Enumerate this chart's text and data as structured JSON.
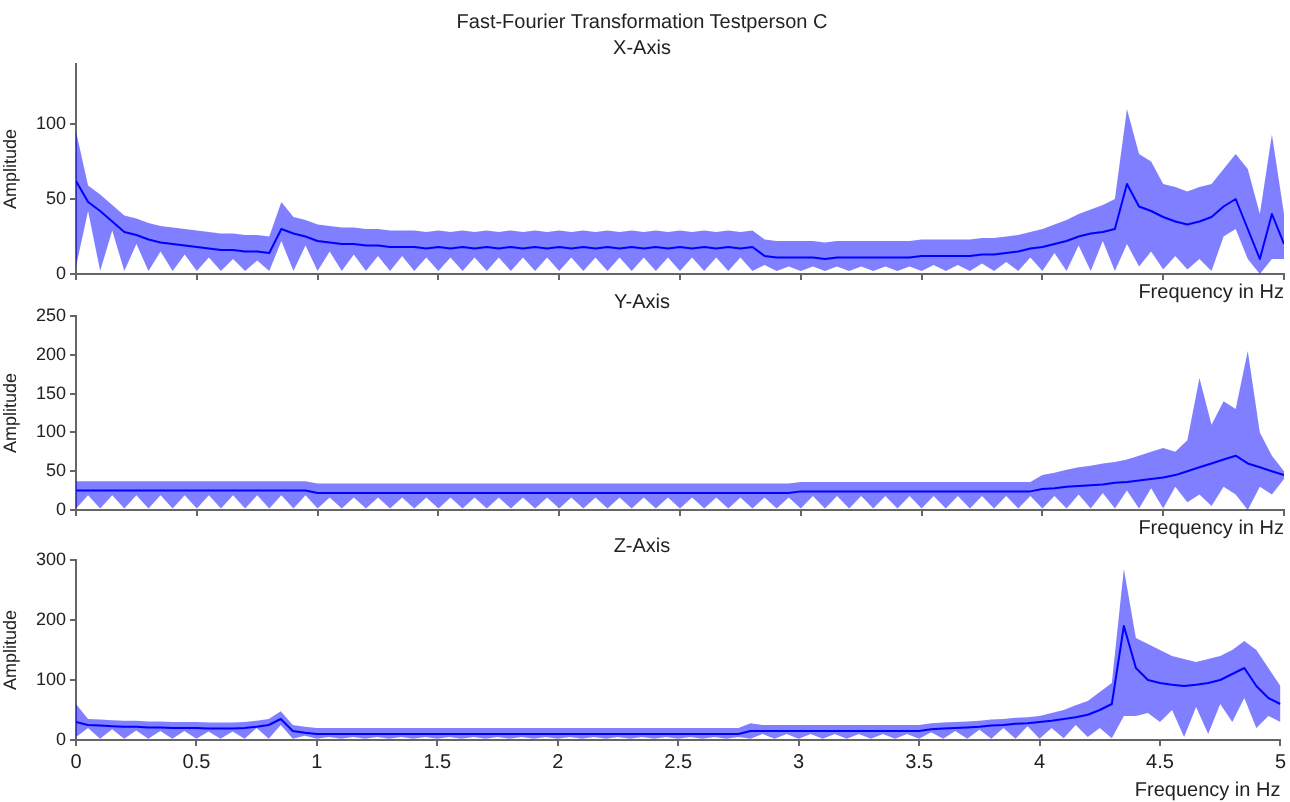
{
  "chart_data": [
    {
      "type": "line",
      "title": "Fast-Fourier Transformation Testperson C",
      "subtitle": "X-Axis",
      "xlabel": "Frequency in Hz",
      "ylabel": "Amplitude",
      "xlim": [
        0,
        5
      ],
      "xticks": [
        0,
        0.5,
        1,
        1.5,
        2,
        2.5,
        3,
        3.5,
        4,
        4.5,
        5
      ],
      "ylim": [
        0,
        140
      ],
      "yticks": [
        0,
        50,
        100
      ],
      "tick_labels": "y",
      "grid": false,
      "legend": false,
      "x": [
        0,
        0.05,
        0.1,
        0.15,
        0.2,
        0.25,
        0.3,
        0.35,
        0.4,
        0.45,
        0.5,
        0.55,
        0.6,
        0.65,
        0.7,
        0.75,
        0.8,
        0.85,
        0.9,
        0.95,
        1,
        1.05,
        1.1,
        1.15,
        1.2,
        1.25,
        1.3,
        1.35,
        1.4,
        1.45,
        1.5,
        1.55,
        1.6,
        1.65,
        1.7,
        1.75,
        1.8,
        1.85,
        1.9,
        1.95,
        2,
        2.05,
        2.1,
        2.15,
        2.2,
        2.25,
        2.3,
        2.35,
        2.4,
        2.45,
        2.5,
        2.55,
        2.6,
        2.65,
        2.7,
        2.75,
        2.8,
        2.85,
        2.9,
        2.95,
        3,
        3.05,
        3.1,
        3.15,
        3.2,
        3.25,
        3.3,
        3.35,
        3.4,
        3.45,
        3.5,
        3.55,
        3.6,
        3.65,
        3.7,
        3.75,
        3.8,
        3.85,
        3.9,
        3.95,
        4,
        4.05,
        4.1,
        4.15,
        4.2,
        4.25,
        4.3,
        4.35,
        4.4,
        4.45,
        4.5,
        4.55,
        4.6,
        4.65,
        4.7,
        4.75,
        4.8,
        4.85,
        4.9,
        4.95,
        5
      ],
      "series": [
        {
          "color": "#0000ff",
          "values": [
            62,
            48,
            42,
            35,
            28,
            26,
            23,
            21,
            20,
            19,
            18,
            17,
            16,
            16,
            15,
            15,
            14,
            30,
            27,
            25,
            22,
            21,
            20,
            20,
            19,
            19,
            18,
            18,
            18,
            17,
            18,
            17,
            18,
            17,
            18,
            17,
            18,
            17,
            18,
            17,
            18,
            17,
            18,
            17,
            18,
            17,
            18,
            17,
            18,
            17,
            18,
            17,
            18,
            17,
            18,
            17,
            18,
            12,
            11,
            11,
            11,
            11,
            10,
            11,
            11,
            11,
            11,
            11,
            11,
            11,
            12,
            12,
            12,
            12,
            12,
            13,
            13,
            14,
            15,
            17,
            18,
            20,
            22,
            25,
            27,
            28,
            30,
            60,
            45,
            42,
            38,
            35,
            33,
            35,
            38,
            45,
            50,
            30,
            10,
            40,
            20
          ],
          "upper": [
            95,
            59,
            53,
            46,
            39,
            37,
            34,
            32,
            31,
            30,
            29,
            28,
            27,
            27,
            26,
            26,
            25,
            48,
            38,
            36,
            33,
            32,
            31,
            31,
            30,
            30,
            29,
            29,
            29,
            28,
            29,
            28,
            29,
            28,
            29,
            28,
            29,
            28,
            29,
            28,
            29,
            28,
            29,
            28,
            29,
            28,
            29,
            28,
            29,
            28,
            29,
            28,
            29,
            28,
            29,
            28,
            29,
            23,
            22,
            22,
            22,
            22,
            21,
            22,
            22,
            22,
            22,
            22,
            22,
            22,
            23,
            23,
            23,
            23,
            23,
            24,
            24,
            25,
            26,
            28,
            30,
            33,
            36,
            40,
            43,
            46,
            50,
            110,
            80,
            75,
            60,
            58,
            55,
            58,
            60,
            70,
            80,
            70,
            40,
            93,
            40
          ],
          "lower": [
            5,
            42,
            2,
            29,
            2,
            20,
            2,
            15,
            2,
            13,
            2,
            11,
            2,
            10,
            2,
            9,
            2,
            22,
            2,
            19,
            2,
            15,
            2,
            13,
            2,
            12,
            2,
            12,
            2,
            11,
            2,
            11,
            2,
            11,
            2,
            11,
            2,
            11,
            2,
            11,
            2,
            11,
            2,
            11,
            2,
            11,
            2,
            11,
            2,
            11,
            2,
            11,
            2,
            11,
            2,
            11,
            2,
            6,
            2,
            5,
            2,
            5,
            2,
            5,
            2,
            5,
            2,
            5,
            2,
            5,
            2,
            6,
            2,
            6,
            2,
            7,
            2,
            8,
            2,
            11,
            2,
            14,
            2,
            19,
            2,
            22,
            2,
            20,
            5,
            15,
            3,
            12,
            3,
            10,
            2,
            25,
            30,
            10,
            0,
            10,
            10
          ]
        }
      ]
    },
    {
      "type": "line",
      "title": "Y-Axis",
      "xlabel": "Frequency in Hz",
      "ylabel": "Amplitude",
      "xlim": [
        0,
        5
      ],
      "xticks": [
        0,
        0.5,
        1,
        1.5,
        2,
        2.5,
        3,
        3.5,
        4,
        4.5,
        5
      ],
      "ylim": [
        0,
        250
      ],
      "yticks": [
        0,
        50,
        100,
        150,
        200,
        250
      ],
      "tick_labels": "y",
      "grid": false,
      "legend": false,
      "x": [
        0,
        0.05,
        0.1,
        0.15,
        0.2,
        0.25,
        0.3,
        0.35,
        0.4,
        0.45,
        0.5,
        0.55,
        0.6,
        0.65,
        0.7,
        0.75,
        0.8,
        0.85,
        0.9,
        0.95,
        1,
        1.05,
        1.1,
        1.15,
        1.2,
        1.25,
        1.3,
        1.35,
        1.4,
        1.45,
        1.5,
        1.55,
        1.6,
        1.65,
        1.7,
        1.75,
        1.8,
        1.85,
        1.9,
        1.95,
        2,
        2.05,
        2.1,
        2.15,
        2.2,
        2.25,
        2.3,
        2.35,
        2.4,
        2.45,
        2.5,
        2.55,
        2.6,
        2.65,
        2.7,
        2.75,
        2.8,
        2.85,
        2.9,
        2.95,
        3,
        3.05,
        3.1,
        3.15,
        3.2,
        3.25,
        3.3,
        3.35,
        3.4,
        3.45,
        3.5,
        3.55,
        3.6,
        3.65,
        3.7,
        3.75,
        3.8,
        3.85,
        3.9,
        3.95,
        4,
        4.05,
        4.1,
        4.15,
        4.2,
        4.25,
        4.3,
        4.35,
        4.4,
        4.45,
        4.5,
        4.55,
        4.6,
        4.65,
        4.7,
        4.75,
        4.8,
        4.85,
        4.9,
        4.95,
        5
      ],
      "series": [
        {
          "color": "#0000ff",
          "values": [
            25,
            25,
            25,
            25,
            25,
            25,
            25,
            25,
            25,
            25,
            25,
            25,
            25,
            25,
            25,
            25,
            25,
            25,
            25,
            25,
            22,
            22,
            22,
            22,
            22,
            22,
            22,
            22,
            22,
            22,
            22,
            22,
            22,
            22,
            22,
            22,
            22,
            22,
            22,
            22,
            22,
            22,
            22,
            22,
            22,
            22,
            22,
            22,
            22,
            22,
            22,
            22,
            22,
            22,
            22,
            22,
            22,
            22,
            22,
            22,
            24,
            24,
            24,
            24,
            24,
            24,
            24,
            24,
            24,
            24,
            24,
            24,
            24,
            24,
            24,
            24,
            24,
            24,
            24,
            24,
            27,
            28,
            30,
            31,
            32,
            33,
            35,
            36,
            38,
            40,
            42,
            45,
            50,
            55,
            60,
            65,
            70,
            60,
            55,
            50,
            45
          ],
          "upper": [
            37,
            37,
            37,
            37,
            37,
            37,
            37,
            37,
            37,
            37,
            37,
            37,
            37,
            37,
            37,
            37,
            37,
            37,
            37,
            37,
            34,
            34,
            34,
            34,
            34,
            34,
            34,
            34,
            34,
            34,
            34,
            34,
            34,
            34,
            34,
            34,
            34,
            34,
            34,
            34,
            34,
            34,
            34,
            34,
            34,
            34,
            34,
            34,
            34,
            34,
            34,
            34,
            34,
            34,
            34,
            34,
            34,
            34,
            34,
            34,
            36,
            36,
            36,
            36,
            36,
            36,
            36,
            36,
            36,
            36,
            36,
            36,
            36,
            36,
            36,
            36,
            36,
            36,
            36,
            36,
            45,
            48,
            52,
            55,
            57,
            60,
            62,
            65,
            70,
            75,
            80,
            75,
            90,
            170,
            110,
            140,
            130,
            205,
            100,
            70,
            50
          ],
          "lower": [
            2,
            19,
            2,
            19,
            2,
            19,
            2,
            19,
            2,
            19,
            2,
            19,
            2,
            19,
            2,
            19,
            2,
            19,
            2,
            19,
            2,
            16,
            2,
            16,
            2,
            16,
            2,
            16,
            2,
            16,
            2,
            16,
            2,
            16,
            2,
            16,
            2,
            16,
            2,
            16,
            2,
            16,
            2,
            16,
            2,
            16,
            2,
            16,
            2,
            16,
            2,
            16,
            2,
            16,
            2,
            16,
            2,
            16,
            2,
            16,
            2,
            18,
            2,
            18,
            2,
            18,
            2,
            18,
            2,
            18,
            2,
            18,
            2,
            18,
            2,
            18,
            2,
            18,
            2,
            18,
            2,
            18,
            2,
            20,
            2,
            22,
            2,
            25,
            2,
            28,
            2,
            30,
            10,
            20,
            5,
            30,
            20,
            0,
            30,
            20,
            40
          ]
        }
      ]
    },
    {
      "type": "line",
      "title": "Z-Axis",
      "xlabel": "Frequency in Hz",
      "ylabel": "Amplitude",
      "xlim": [
        0,
        5
      ],
      "xticks": [
        0,
        0.5,
        1,
        1.5,
        2,
        2.5,
        3,
        3.5,
        4,
        4.5,
        5
      ],
      "ylim": [
        0,
        300
      ],
      "yticks": [
        0,
        100,
        200,
        300
      ],
      "grid": false,
      "legend": false,
      "x": [
        0,
        0.05,
        0.1,
        0.15,
        0.2,
        0.25,
        0.3,
        0.35,
        0.4,
        0.45,
        0.5,
        0.55,
        0.6,
        0.65,
        0.7,
        0.75,
        0.8,
        0.85,
        0.9,
        0.95,
        1,
        1.05,
        1.1,
        1.15,
        1.2,
        1.25,
        1.3,
        1.35,
        1.4,
        1.45,
        1.5,
        1.55,
        1.6,
        1.65,
        1.7,
        1.75,
        1.8,
        1.85,
        1.9,
        1.95,
        2,
        2.05,
        2.1,
        2.15,
        2.2,
        2.25,
        2.3,
        2.35,
        2.4,
        2.45,
        2.5,
        2.55,
        2.6,
        2.65,
        2.7,
        2.75,
        2.8,
        2.85,
        2.9,
        2.95,
        3,
        3.05,
        3.1,
        3.15,
        3.2,
        3.25,
        3.3,
        3.35,
        3.4,
        3.45,
        3.5,
        3.55,
        3.6,
        3.65,
        3.7,
        3.75,
        3.8,
        3.85,
        3.9,
        3.95,
        4,
        4.05,
        4.1,
        4.15,
        4.2,
        4.25,
        4.3,
        4.35,
        4.4,
        4.45,
        4.5,
        4.55,
        4.6,
        4.65,
        4.7,
        4.75,
        4.8,
        4.85,
        4.9,
        4.95,
        5
      ],
      "series": [
        {
          "color": "#0000ff",
          "values": [
            30,
            25,
            24,
            23,
            22,
            22,
            21,
            21,
            20,
            20,
            20,
            19,
            19,
            19,
            20,
            22,
            25,
            35,
            15,
            12,
            10,
            10,
            10,
            10,
            10,
            10,
            10,
            10,
            10,
            10,
            10,
            10,
            10,
            10,
            10,
            10,
            10,
            10,
            10,
            10,
            10,
            10,
            10,
            10,
            10,
            10,
            10,
            10,
            10,
            10,
            10,
            10,
            10,
            10,
            10,
            10,
            15,
            15,
            15,
            15,
            15,
            15,
            15,
            15,
            15,
            15,
            15,
            15,
            15,
            15,
            15,
            18,
            19,
            20,
            21,
            22,
            24,
            25,
            27,
            28,
            30,
            32,
            35,
            38,
            42,
            50,
            60,
            190,
            120,
            100,
            95,
            92,
            90,
            92,
            95,
            100,
            110,
            120,
            90,
            70,
            60
          ],
          "upper": [
            60,
            35,
            34,
            33,
            32,
            32,
            31,
            31,
            30,
            30,
            30,
            29,
            29,
            29,
            30,
            32,
            35,
            48,
            25,
            22,
            20,
            20,
            20,
            20,
            20,
            20,
            20,
            20,
            20,
            20,
            20,
            20,
            20,
            20,
            20,
            20,
            20,
            20,
            20,
            20,
            20,
            20,
            20,
            20,
            20,
            20,
            20,
            20,
            20,
            20,
            20,
            20,
            20,
            20,
            20,
            20,
            28,
            25,
            25,
            25,
            25,
            25,
            25,
            25,
            25,
            25,
            25,
            25,
            25,
            25,
            25,
            28,
            29,
            30,
            31,
            32,
            34,
            35,
            37,
            38,
            40,
            45,
            50,
            58,
            65,
            80,
            95,
            285,
            170,
            160,
            150,
            140,
            135,
            130,
            135,
            140,
            150,
            165,
            150,
            120,
            90
          ],
          "lower": [
            5,
            20,
            2,
            18,
            2,
            16,
            2,
            15,
            2,
            15,
            2,
            14,
            2,
            14,
            2,
            20,
            2,
            25,
            2,
            7,
            2,
            5,
            2,
            5,
            2,
            5,
            2,
            5,
            2,
            5,
            2,
            5,
            2,
            5,
            2,
            5,
            2,
            5,
            2,
            5,
            2,
            5,
            2,
            5,
            2,
            5,
            2,
            5,
            2,
            5,
            2,
            5,
            2,
            5,
            2,
            5,
            2,
            10,
            2,
            10,
            2,
            10,
            2,
            10,
            2,
            10,
            2,
            10,
            2,
            10,
            2,
            13,
            2,
            15,
            2,
            17,
            2,
            20,
            2,
            23,
            2,
            20,
            3,
            25,
            5,
            20,
            3,
            40,
            40,
            45,
            30,
            50,
            5,
            55,
            10,
            60,
            30,
            70,
            20,
            40,
            30
          ]
        }
      ]
    }
  ]
}
